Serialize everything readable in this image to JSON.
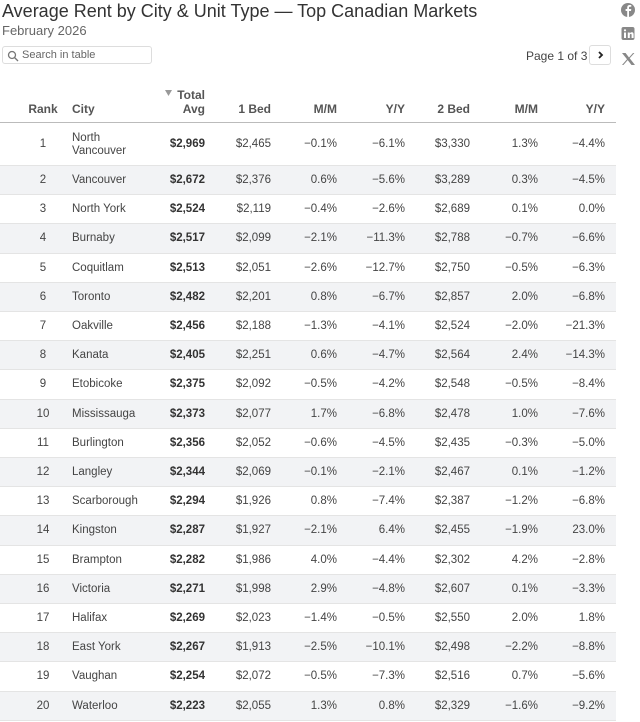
{
  "header": {
    "title": "Average Rent by City & Unit Type — Top Canadian Markets",
    "subtitle": "February 2026"
  },
  "controls": {
    "search_placeholder": "Search in table",
    "page": "Page 1 of 3"
  },
  "table": {
    "columns": [
      "Rank",
      "City",
      "Total Avg",
      "1 Bed",
      "M/M",
      "Y/Y",
      "2 Bed",
      "M/M",
      "Y/Y"
    ],
    "rows": [
      [
        1,
        "North Vancouver",
        "$2,969",
        "$2,465",
        "−0.1%",
        "−6.1%",
        "$3,330",
        "1.3%",
        "−4.4%"
      ],
      [
        2,
        "Vancouver",
        "$2,672",
        "$2,376",
        "0.6%",
        "−5.6%",
        "$3,289",
        "0.3%",
        "−4.5%"
      ],
      [
        3,
        "North York",
        "$2,524",
        "$2,119",
        "−0.4%",
        "−2.6%",
        "$2,689",
        "0.1%",
        "0.0%"
      ],
      [
        4,
        "Burnaby",
        "$2,517",
        "$2,099",
        "−2.1%",
        "−11.3%",
        "$2,788",
        "−0.7%",
        "−6.6%"
      ],
      [
        5,
        "Coquitlam",
        "$2,513",
        "$2,051",
        "−2.6%",
        "−12.7%",
        "$2,750",
        "−0.5%",
        "−6.3%"
      ],
      [
        6,
        "Toronto",
        "$2,482",
        "$2,201",
        "0.8%",
        "−6.7%",
        "$2,857",
        "2.0%",
        "−6.8%"
      ],
      [
        7,
        "Oakville",
        "$2,456",
        "$2,188",
        "−1.3%",
        "−4.1%",
        "$2,524",
        "−2.0%",
        "−21.3%"
      ],
      [
        8,
        "Kanata",
        "$2,405",
        "$2,251",
        "0.6%",
        "−4.7%",
        "$2,564",
        "2.4%",
        "−14.3%"
      ],
      [
        9,
        "Etobicoke",
        "$2,375",
        "$2,092",
        "−0.5%",
        "−4.2%",
        "$2,548",
        "−0.5%",
        "−8.4%"
      ],
      [
        10,
        "Mississauga",
        "$2,373",
        "$2,077",
        "1.7%",
        "−6.8%",
        "$2,478",
        "1.0%",
        "−7.6%"
      ],
      [
        11,
        "Burlington",
        "$2,356",
        "$2,052",
        "−0.6%",
        "−4.5%",
        "$2,435",
        "−0.3%",
        "−5.0%"
      ],
      [
        12,
        "Langley",
        "$2,344",
        "$2,069",
        "−0.1%",
        "−2.1%",
        "$2,467",
        "0.1%",
        "−1.2%"
      ],
      [
        13,
        "Scarborough",
        "$2,294",
        "$1,926",
        "0.8%",
        "−7.4%",
        "$2,387",
        "−1.2%",
        "−6.8%"
      ],
      [
        14,
        "Kingston",
        "$2,287",
        "$1,927",
        "−2.1%",
        "6.4%",
        "$2,455",
        "−1.9%",
        "23.0%"
      ],
      [
        15,
        "Brampton",
        "$2,282",
        "$1,986",
        "4.0%",
        "−4.4%",
        "$2,302",
        "4.2%",
        "−2.8%"
      ],
      [
        16,
        "Victoria",
        "$2,271",
        "$1,998",
        "2.9%",
        "−4.8%",
        "$2,607",
        "0.1%",
        "−3.3%"
      ],
      [
        17,
        "Halifax",
        "$2,269",
        "$2,023",
        "−1.4%",
        "−0.5%",
        "$2,550",
        "2.0%",
        "1.8%"
      ],
      [
        18,
        "East York",
        "$2,267",
        "$1,913",
        "−2.5%",
        "−10.1%",
        "$2,498",
        "−2.2%",
        "−8.8%"
      ],
      [
        19,
        "Vaughan",
        "$2,254",
        "$2,072",
        "−0.5%",
        "−7.3%",
        "$2,516",
        "0.7%",
        "−5.6%"
      ],
      [
        20,
        "Waterloo",
        "$2,223",
        "$2,055",
        "1.3%",
        "0.8%",
        "$2,329",
        "−1.6%",
        "−9.2%"
      ]
    ]
  }
}
